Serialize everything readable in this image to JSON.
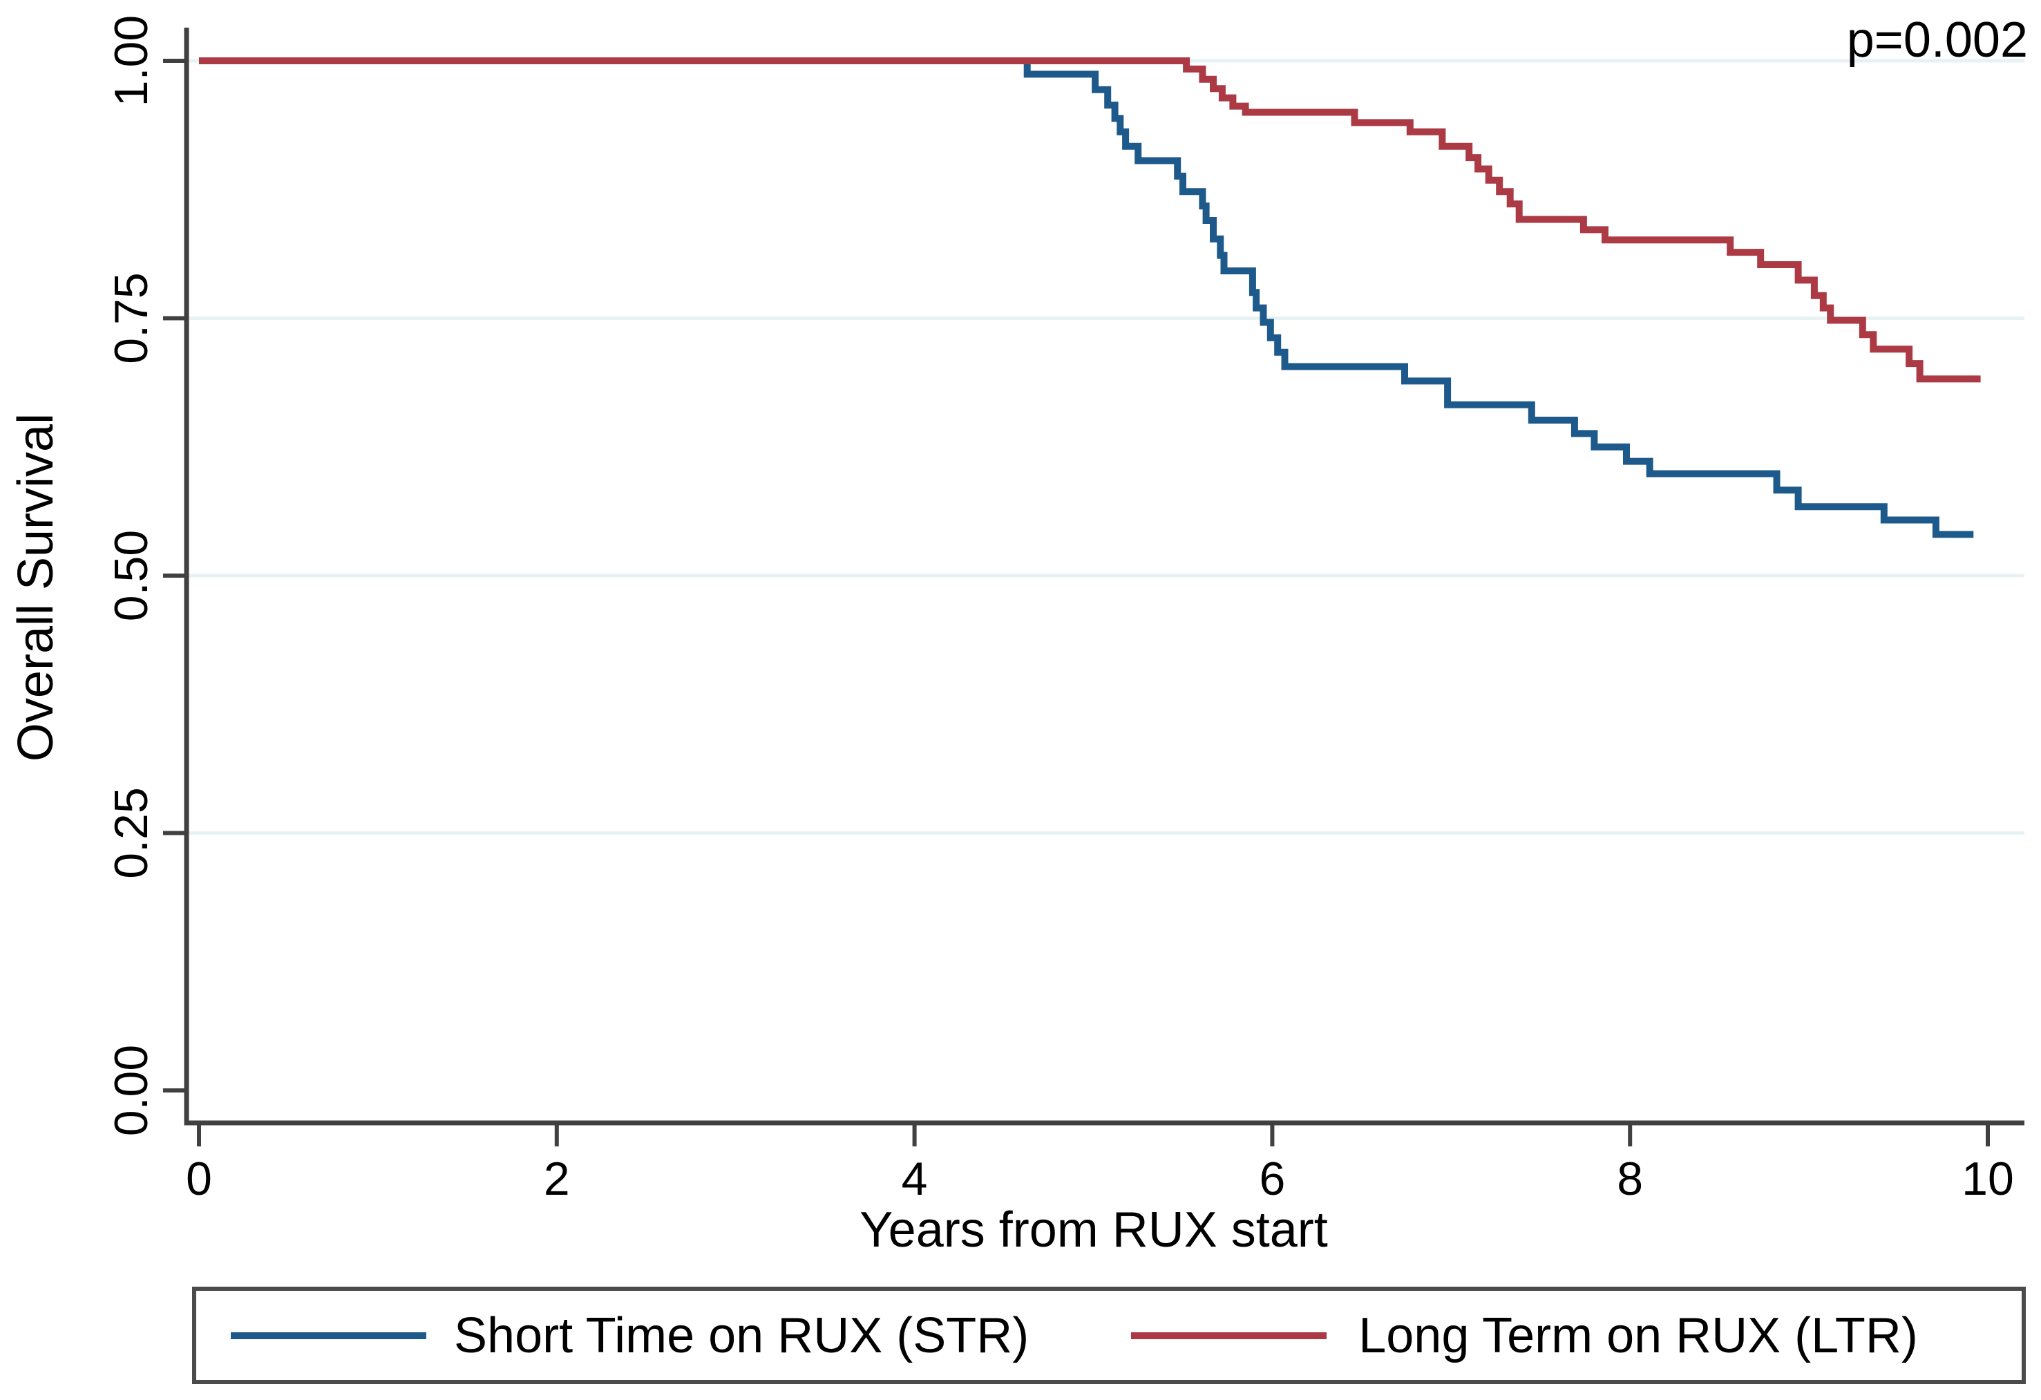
{
  "chart_data": {
    "type": "line",
    "subtype": "kaplan-meier-step",
    "title": "",
    "xlabel": "Years from RUX start",
    "ylabel": "Overall Survival",
    "annotation": "p=0.002",
    "xlim": [
      0,
      10
    ],
    "ylim": [
      0,
      1
    ],
    "xticks": [
      0,
      2,
      4,
      6,
      8,
      10
    ],
    "xtick_labels": [
      "0",
      "2",
      "4",
      "6",
      "8",
      "10"
    ],
    "yticks": [
      0,
      0.25,
      0.5,
      0.75,
      1
    ],
    "ytick_labels": [
      "0.00",
      "0.25",
      "0.50",
      "0.75",
      "1.00"
    ],
    "grid": "horizontal",
    "gridline_levels": [
      0.25,
      0.5,
      0.75,
      1.0
    ],
    "legend_position": "bottom",
    "axis_color": "#404040",
    "grid_color": "#e8f2f4",
    "text_color": "#000000",
    "legend_border_color": "#4b4b4b",
    "series": [
      {
        "name": "Short Time on RUX (STR)",
        "color": "#1d5a8b",
        "start": [
          0,
          1.0
        ],
        "end_x": 9.92,
        "steps": [
          [
            4.63,
            0.987
          ],
          [
            5.01,
            0.972
          ],
          [
            5.08,
            0.957
          ],
          [
            5.12,
            0.944
          ],
          [
            5.15,
            0.931
          ],
          [
            5.18,
            0.917
          ],
          [
            5.25,
            0.903
          ],
          [
            5.47,
            0.888
          ],
          [
            5.5,
            0.873
          ],
          [
            5.61,
            0.859
          ],
          [
            5.63,
            0.845
          ],
          [
            5.67,
            0.827
          ],
          [
            5.71,
            0.811
          ],
          [
            5.73,
            0.796
          ],
          [
            5.89,
            0.775
          ],
          [
            5.91,
            0.76
          ],
          [
            5.95,
            0.746
          ],
          [
            5.99,
            0.731
          ],
          [
            6.03,
            0.717
          ],
          [
            6.07,
            0.703
          ],
          [
            6.74,
            0.689
          ],
          [
            6.98,
            0.666
          ],
          [
            7.45,
            0.651
          ],
          [
            7.69,
            0.638
          ],
          [
            7.8,
            0.625
          ],
          [
            7.98,
            0.611
          ],
          [
            8.11,
            0.599
          ],
          [
            8.82,
            0.583
          ],
          [
            8.94,
            0.567
          ],
          [
            9.42,
            0.554
          ],
          [
            9.71,
            0.54
          ]
        ]
      },
      {
        "name": "Long Term on RUX (LTR)",
        "color": "#ac3a45",
        "start": [
          0,
          1.0
        ],
        "end_x": 9.96,
        "steps": [
          [
            5.52,
            0.992
          ],
          [
            5.61,
            0.982
          ],
          [
            5.67,
            0.973
          ],
          [
            5.72,
            0.964
          ],
          [
            5.78,
            0.956
          ],
          [
            5.85,
            0.95
          ],
          [
            6.46,
            0.94
          ],
          [
            6.77,
            0.931
          ],
          [
            6.95,
            0.917
          ],
          [
            7.1,
            0.906
          ],
          [
            7.15,
            0.895
          ],
          [
            7.21,
            0.884
          ],
          [
            7.27,
            0.873
          ],
          [
            7.33,
            0.861
          ],
          [
            7.38,
            0.846
          ],
          [
            7.74,
            0.836
          ],
          [
            7.86,
            0.826
          ],
          [
            8.56,
            0.814
          ],
          [
            8.73,
            0.802
          ],
          [
            8.94,
            0.787
          ],
          [
            9.03,
            0.772
          ],
          [
            9.08,
            0.76
          ],
          [
            9.12,
            0.748
          ],
          [
            9.3,
            0.734
          ],
          [
            9.36,
            0.72
          ],
          [
            9.56,
            0.706
          ],
          [
            9.62,
            0.691
          ]
        ]
      }
    ]
  }
}
